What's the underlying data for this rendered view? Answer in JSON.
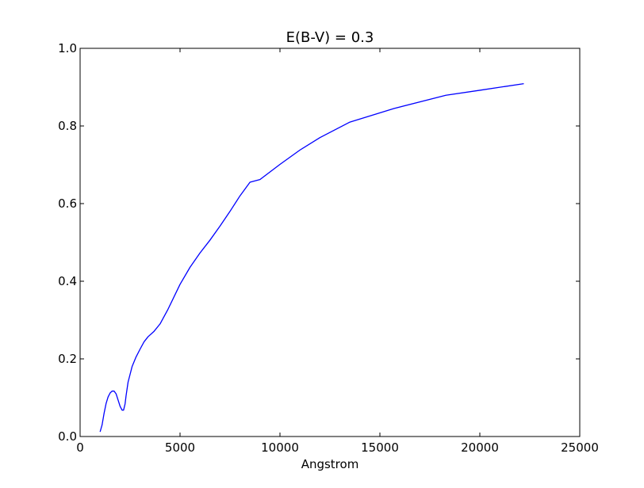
{
  "chart_data": {
    "type": "line",
    "title": "E(B-V) = 0.3",
    "xlabel": "Angstrom",
    "ylabel": "",
    "xlim": [
      0,
      25000
    ],
    "ylim": [
      0,
      1.0
    ],
    "xticks": [
      0,
      5000,
      10000,
      15000,
      20000,
      25000
    ],
    "yticks": [
      0.0,
      0.2,
      0.4,
      0.6,
      0.8,
      1.0
    ],
    "xtick_labels": [
      "0",
      "5000",
      "10000",
      "15000",
      "20000",
      "25000"
    ],
    "ytick_labels": [
      "0.0",
      "0.2",
      "0.4",
      "0.6",
      "0.8",
      "1.0"
    ],
    "grid": false,
    "series": [
      {
        "color": "#0000ff",
        "x": [
          1000,
          1100,
          1200,
          1300,
          1400,
          1500,
          1600,
          1700,
          1800,
          1900,
          2000,
          2100,
          2175,
          2250,
          2300,
          2400,
          2500,
          2600,
          2800,
          3000,
          3200,
          3400,
          3700,
          4000,
          4400,
          5000,
          5500,
          6000,
          6500,
          7000,
          7500,
          8000,
          8500,
          9000,
          10000,
          11000,
          12000,
          13500,
          15700,
          18300,
          20000,
          22200
        ],
        "y": [
          0.012,
          0.03,
          0.06,
          0.085,
          0.102,
          0.112,
          0.117,
          0.117,
          0.11,
          0.094,
          0.078,
          0.068,
          0.068,
          0.084,
          0.105,
          0.14,
          0.16,
          0.18,
          0.205,
          0.225,
          0.244,
          0.257,
          0.271,
          0.29,
          0.328,
          0.392,
          0.436,
          0.473,
          0.506,
          0.542,
          0.58,
          0.62,
          0.655,
          0.662,
          0.701,
          0.738,
          0.77,
          0.81,
          0.845,
          0.879,
          0.892,
          0.909
        ]
      }
    ]
  }
}
